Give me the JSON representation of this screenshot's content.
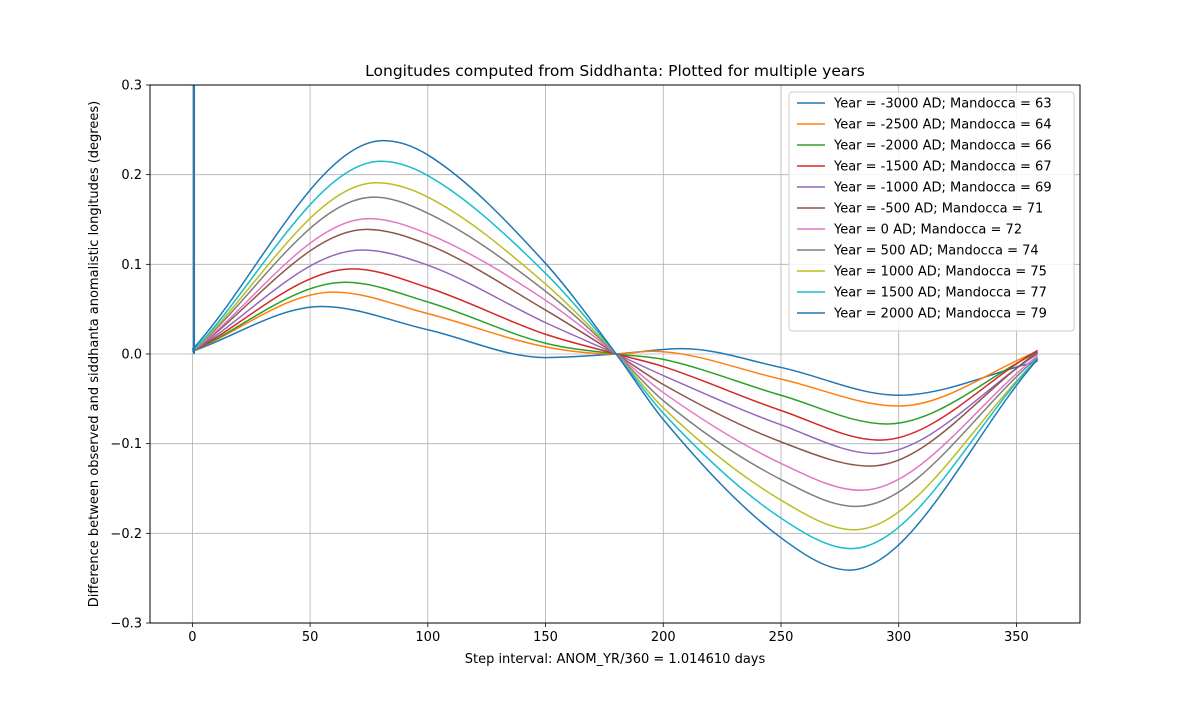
{
  "chart_data": {
    "type": "line",
    "title": "Longitudes computed from Siddhanta: Plotted for multiple years",
    "xlabel": "Step interval: ANOM_YR/360 = 1.014610 days",
    "ylabel": "Difference between observed and siddhanta anomalistic longitudes (degrees)",
    "xlim": [
      -18,
      377
    ],
    "ylim": [
      -0.3,
      0.3
    ],
    "xticks": [
      0,
      50,
      100,
      150,
      200,
      250,
      300,
      350
    ],
    "xtick_labels": [
      "0",
      "50",
      "100",
      "150",
      "200",
      "250",
      "300",
      "350"
    ],
    "yticks": [
      -0.3,
      -0.2,
      -0.1,
      0.0,
      0.1,
      0.2,
      0.3
    ],
    "ytick_labels": [
      "−0.3",
      "−0.2",
      "−0.1",
      "0.0",
      "0.1",
      "0.2",
      "0.3"
    ],
    "grid": true,
    "legend_position": "top-right",
    "spike": {
      "x": 0.7,
      "from_y": 0.0,
      "to_y": 0.3,
      "color": "#1f77b4"
    },
    "series": [
      {
        "name": "Year = -3000 AD; Mandocca = 63",
        "color": "#1f77b4",
        "points": [
          [
            0,
            0.003
          ],
          [
            55,
            0.053
          ],
          [
            100,
            0.027
          ],
          [
            150,
            -0.004
          ],
          [
            180,
            0.0
          ],
          [
            208,
            0.006
          ],
          [
            250,
            -0.015
          ],
          [
            300,
            -0.046
          ],
          [
            359,
            -0.008
          ]
        ]
      },
      {
        "name": "Year = -2500 AD; Mandocca = 64",
        "color": "#ff7f0e",
        "points": [
          [
            0,
            0.003
          ],
          [
            60,
            0.069
          ],
          [
            100,
            0.045
          ],
          [
            150,
            0.008
          ],
          [
            180,
            0.0
          ],
          [
            195,
            0.003
          ],
          [
            250,
            -0.028
          ],
          [
            300,
            -0.058
          ],
          [
            359,
            0.003
          ]
        ]
      },
      {
        "name": "Year = -2000 AD; Mandocca = 66",
        "color": "#2ca02c",
        "points": [
          [
            0,
            0.003
          ],
          [
            65,
            0.08
          ],
          [
            100,
            0.058
          ],
          [
            150,
            0.012
          ],
          [
            180,
            0.0
          ],
          [
            200,
            -0.006
          ],
          [
            250,
            -0.046
          ],
          [
            295,
            -0.078
          ],
          [
            359,
            0.002
          ]
        ]
      },
      {
        "name": "Year = -1500 AD; Mandocca = 67",
        "color": "#d62728",
        "points": [
          [
            0,
            0.003
          ],
          [
            68,
            0.095
          ],
          [
            100,
            0.074
          ],
          [
            150,
            0.022
          ],
          [
            180,
            0.0
          ],
          [
            200,
            -0.014
          ],
          [
            250,
            -0.063
          ],
          [
            292,
            -0.096
          ],
          [
            359,
            0.004
          ]
        ]
      },
      {
        "name": "Year = -1000 AD; Mandocca = 69",
        "color": "#9467bd",
        "points": [
          [
            0,
            0.003
          ],
          [
            72,
            0.116
          ],
          [
            100,
            0.099
          ],
          [
            150,
            0.035
          ],
          [
            180,
            0.0
          ],
          [
            200,
            -0.024
          ],
          [
            250,
            -0.079
          ],
          [
            290,
            -0.111
          ],
          [
            359,
            0.0
          ]
        ]
      },
      {
        "name": "Year = -500 AD; Mandocca = 71",
        "color": "#8c564b",
        "points": [
          [
            0,
            0.003
          ],
          [
            74,
            0.139
          ],
          [
            100,
            0.122
          ],
          [
            150,
            0.049
          ],
          [
            180,
            0.0
          ],
          [
            200,
            -0.034
          ],
          [
            250,
            -0.098
          ],
          [
            288,
            -0.125
          ],
          [
            359,
            0.002
          ]
        ]
      },
      {
        "name": "Year = 0 AD; Mandocca = 72",
        "color": "#e377c2",
        "points": [
          [
            0,
            0.003
          ],
          [
            75,
            0.151
          ],
          [
            100,
            0.134
          ],
          [
            150,
            0.06
          ],
          [
            180,
            0.0
          ],
          [
            200,
            -0.043
          ],
          [
            250,
            -0.122
          ],
          [
            284,
            -0.152
          ],
          [
            359,
            -0.002
          ]
        ]
      },
      {
        "name": "Year = 500 AD; Mandocca = 74",
        "color": "#7f7f7f",
        "points": [
          [
            0,
            0.003
          ],
          [
            77,
            0.175
          ],
          [
            100,
            0.157
          ],
          [
            150,
            0.07
          ],
          [
            180,
            0.0
          ],
          [
            200,
            -0.052
          ],
          [
            250,
            -0.14
          ],
          [
            282,
            -0.17
          ],
          [
            359,
            -0.004
          ]
        ]
      },
      {
        "name": "Year = 1000 AD; Mandocca = 75",
        "color": "#bcbd22",
        "points": [
          [
            0,
            0.003
          ],
          [
            78,
            0.191
          ],
          [
            100,
            0.175
          ],
          [
            150,
            0.078
          ],
          [
            180,
            0.0
          ],
          [
            200,
            -0.06
          ],
          [
            250,
            -0.163
          ],
          [
            281,
            -0.196
          ],
          [
            359,
            -0.006
          ]
        ]
      },
      {
        "name": "Year = 1500 AD; Mandocca = 77",
        "color": "#17becf",
        "points": [
          [
            0,
            0.003
          ],
          [
            80,
            0.215
          ],
          [
            100,
            0.199
          ],
          [
            150,
            0.09
          ],
          [
            180,
            0.0
          ],
          [
            200,
            -0.066
          ],
          [
            250,
            -0.183
          ],
          [
            280,
            -0.217
          ],
          [
            359,
            -0.005
          ]
        ]
      },
      {
        "name": "Year = 2000 AD; Mandocca = 79",
        "color": "#1f77b4",
        "points": [
          [
            0,
            0.005
          ],
          [
            81,
            0.238
          ],
          [
            100,
            0.222
          ],
          [
            150,
            0.101
          ],
          [
            180,
            0.0
          ],
          [
            200,
            -0.073
          ],
          [
            250,
            -0.205
          ],
          [
            279,
            -0.241
          ],
          [
            359,
            -0.006
          ]
        ]
      }
    ]
  }
}
